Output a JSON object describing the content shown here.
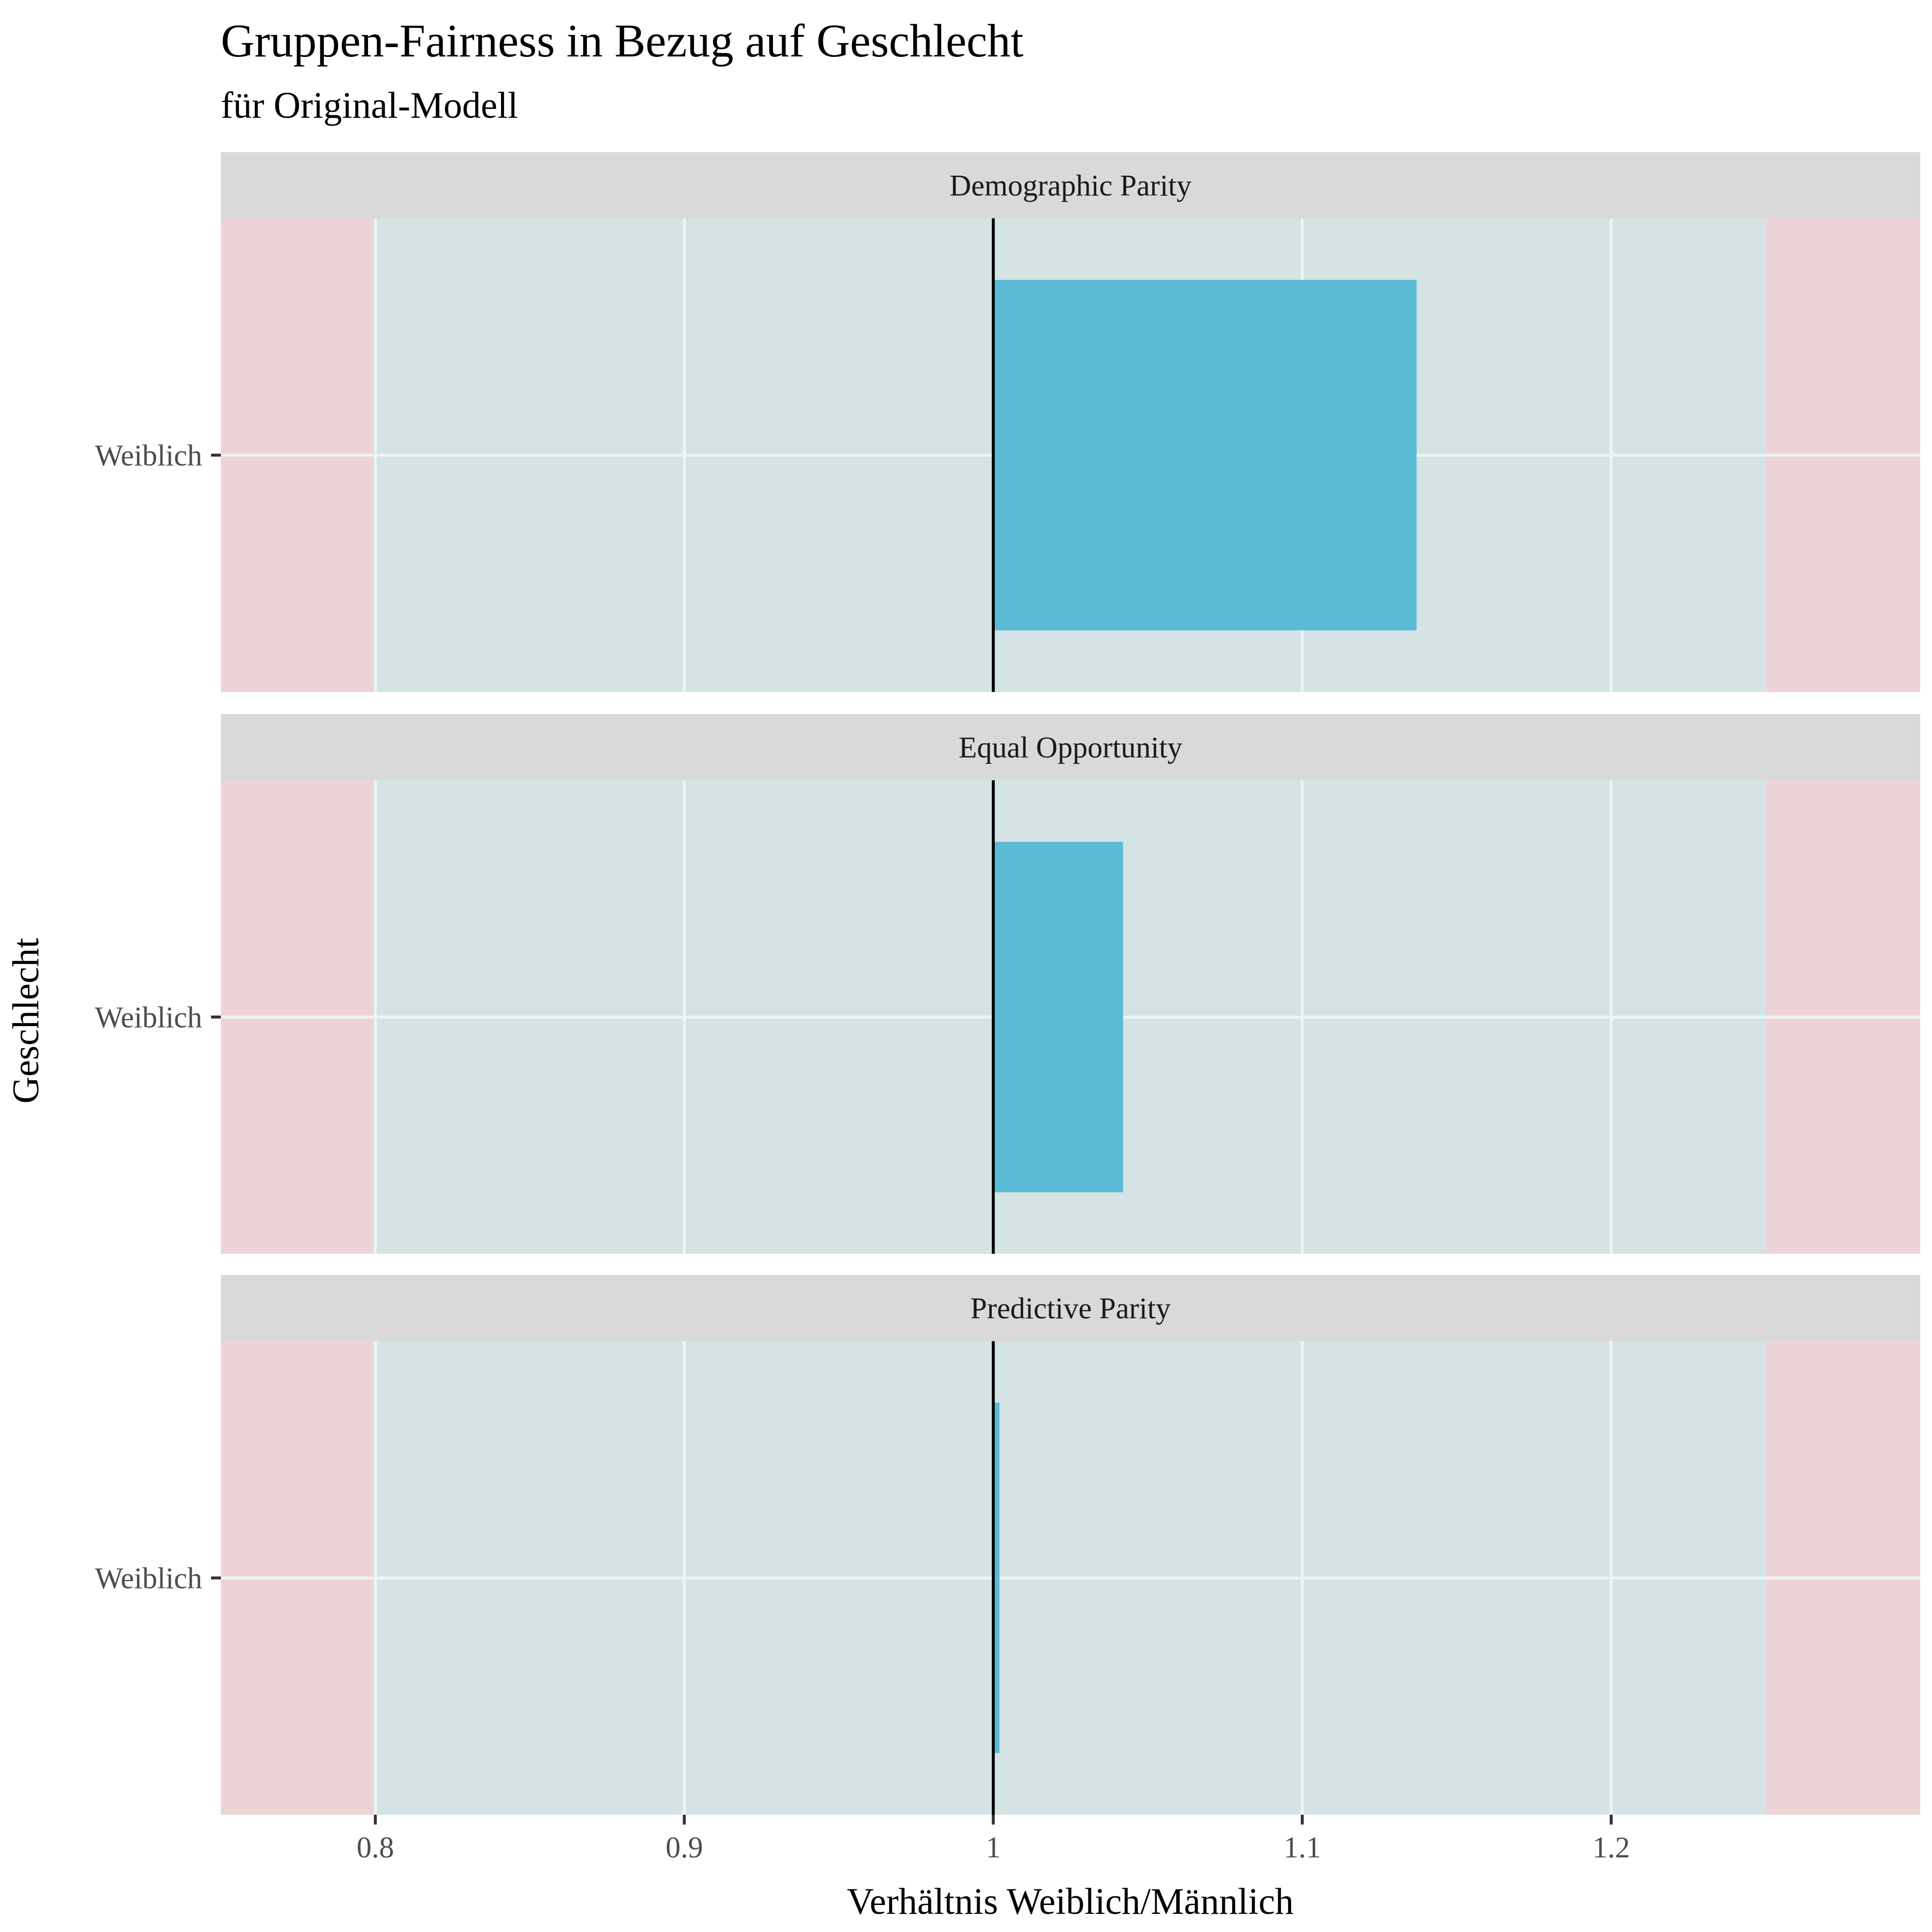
{
  "title": "Gruppen-Fairness in Bezug auf Geschlecht",
  "subtitle": "für Original-Modell",
  "colors": {
    "bar": "#5bbad5",
    "fair_band": "#d4e4e4",
    "unfair_band": "#eed3d6",
    "strip": "#d9d9d9",
    "grid": "#ebf5f5",
    "reference_line": "#000000"
  },
  "chart_data": {
    "type": "bar",
    "orientation": "horizontal",
    "xlabel": "Verhältnis Weiblich/Männlich",
    "ylabel": "Geschlecht",
    "xlim": [
      0.75,
      1.3
    ],
    "xticks": [
      0.8,
      0.9,
      1.0,
      1.1,
      1.2
    ],
    "xtick_labels": [
      "0.8",
      "0.9",
      "1",
      "1.1",
      "1.2"
    ],
    "baseline": 1.0,
    "fair_range": [
      0.8,
      1.25
    ],
    "grid": true,
    "panels": [
      {
        "name": "Demographic Parity",
        "categories": [
          "Weiblich"
        ],
        "values": [
          1.137
        ]
      },
      {
        "name": "Equal Opportunity",
        "categories": [
          "Weiblich"
        ],
        "values": [
          1.042
        ]
      },
      {
        "name": "Predictive Parity",
        "categories": [
          "Weiblich"
        ],
        "values": [
          1.002
        ]
      }
    ]
  }
}
